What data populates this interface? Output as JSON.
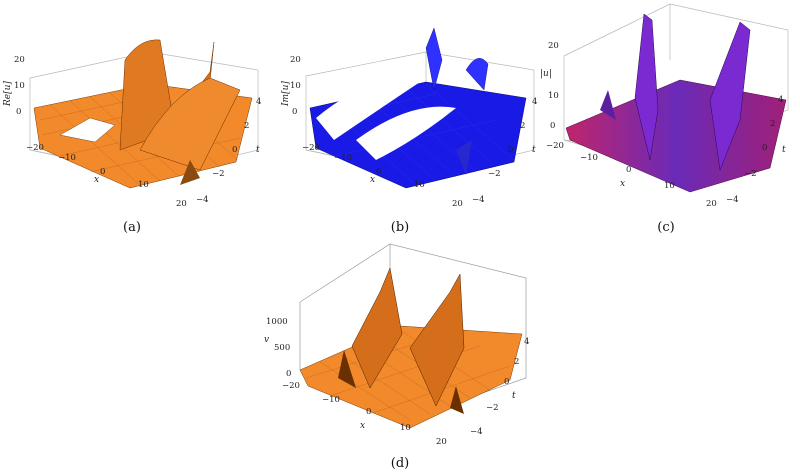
{
  "panels": [
    {
      "caption": "(a)",
      "zlabel": "Re[u]",
      "xlabel": "x",
      "ylabel": "t",
      "zticks": [
        "20",
        "10",
        "0"
      ],
      "xticks": [
        "−20",
        "−10",
        "0",
        "10",
        "20"
      ],
      "yticks": [
        "4",
        "2",
        "0",
        "−2",
        "−4"
      ],
      "surface_color": "#f28a2c"
    },
    {
      "caption": "(b)",
      "zlabel": "Im[u]",
      "xlabel": "x",
      "ylabel": "t",
      "zticks": [
        "20",
        "10",
        "0"
      ],
      "xticks": [
        "−20",
        "−10",
        "0",
        "10",
        "20"
      ],
      "yticks": [
        "4",
        "2",
        "0",
        "−2",
        "−4"
      ],
      "surface_color": "#1a1ae6"
    },
    {
      "caption": "(c)",
      "zlabel": "|u|",
      "xlabel": "x",
      "ylabel": "t",
      "zticks": [
        "20",
        "10",
        "0"
      ],
      "xticks": [
        "−20",
        "−10",
        "0",
        "10",
        "20"
      ],
      "yticks": [
        "4",
        "2",
        "0",
        "−2",
        "−4"
      ],
      "surface_color": "#a0207a"
    },
    {
      "caption": "(d)",
      "zlabel": "v",
      "xlabel": "x",
      "ylabel": "t",
      "zticks": [
        "1000",
        "500",
        "0"
      ],
      "xticks": [
        "−20",
        "−10",
        "0",
        "10",
        "20"
      ],
      "yticks": [
        "4",
        "2",
        "0",
        "−2",
        "−4"
      ],
      "surface_color": "#f28a2c"
    }
  ]
}
